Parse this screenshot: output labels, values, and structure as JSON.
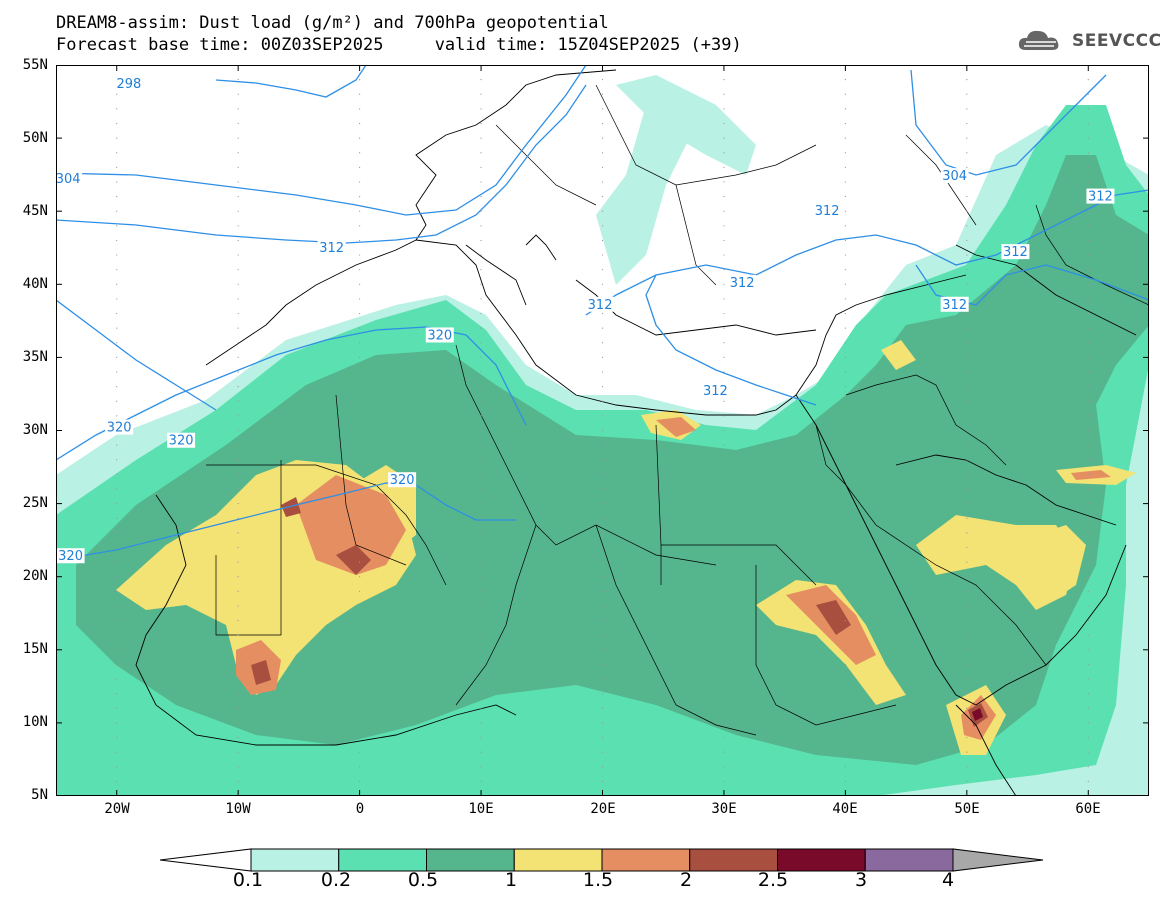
{
  "title": {
    "line1": "DREAM8-assim: Dust load (g/m²) and 700hPa geopotential",
    "line2": "Forecast base time: 00Z03SEP2025     valid time: 15Z04SEP2025 (+39)"
  },
  "logo": {
    "text": "SEEVCCC",
    "icon": "cloud-icon"
  },
  "map": {
    "lat_ticks": [
      "55N",
      "50N",
      "45N",
      "40N",
      "35N",
      "30N",
      "25N",
      "20N",
      "15N",
      "10N",
      "5N"
    ],
    "lon_ticks": [
      "20W",
      "10W",
      "0",
      "10E",
      "20E",
      "30E",
      "40E",
      "50E",
      "60E"
    ],
    "lat_range": [
      5,
      55
    ],
    "lon_range": [
      -25,
      65
    ],
    "contour_labels": [
      {
        "text": "298",
        "lon": -19,
        "lat": 53.7
      },
      {
        "text": "304",
        "lon": -24,
        "lat": 47.2
      },
      {
        "text": "312",
        "lon": -2.3,
        "lat": 42.5
      },
      {
        "text": "312",
        "lon": 19.8,
        "lat": 38.6
      },
      {
        "text": "312",
        "lon": 31.5,
        "lat": 40.1
      },
      {
        "text": "312",
        "lon": 38.5,
        "lat": 45.0
      },
      {
        "text": "312",
        "lon": 49,
        "lat": 38.6
      },
      {
        "text": "312",
        "lon": 54,
        "lat": 42.2
      },
      {
        "text": "312",
        "lon": 61,
        "lat": 46.0
      },
      {
        "text": "312",
        "lon": 29.3,
        "lat": 32.7
      },
      {
        "text": "304",
        "lon": 49,
        "lat": 47.4
      },
      {
        "text": "320",
        "lon": 6.6,
        "lat": 36.5
      },
      {
        "text": "320",
        "lon": -19.8,
        "lat": 30.2
      },
      {
        "text": "320",
        "lon": -14.7,
        "lat": 29.3
      },
      {
        "text": "320",
        "lon": 3.5,
        "lat": 26.6
      },
      {
        "text": "320",
        "lon": -23.8,
        "lat": 21.4
      }
    ]
  },
  "colorbar": {
    "labels": [
      "0.1",
      "0.2",
      "0.5",
      "1",
      "1.5",
      "2",
      "2.5",
      "3",
      "4"
    ],
    "colors": [
      "#b9f1e4",
      "#5be0b2",
      "#55b58d",
      "#f3e274",
      "#e58e62",
      "#a94f3f",
      "#7a0a2a",
      "#8a6a9e"
    ],
    "under_color": "#ffffff",
    "over_color": "#a8a8a8"
  }
}
